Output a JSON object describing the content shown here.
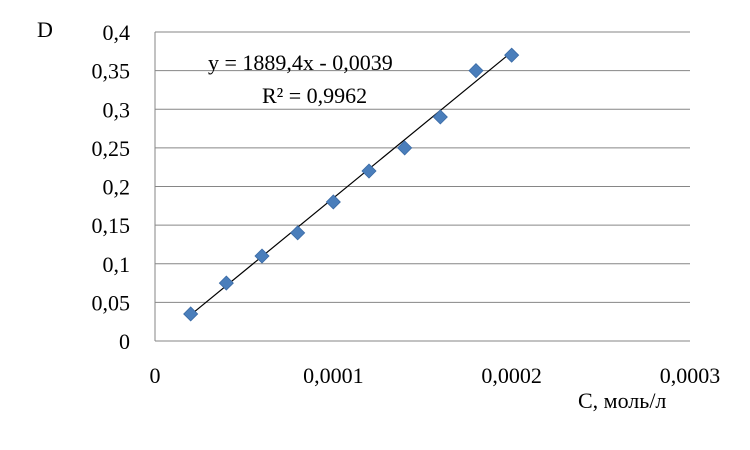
{
  "chart_data": {
    "type": "scatter",
    "xlabel": "C,  моль/л",
    "ylabel": "D",
    "xlim": [
      0,
      0.0003
    ],
    "ylim": [
      0,
      0.4
    ],
    "x_ticks": [
      {
        "value": 0,
        "label": "0"
      },
      {
        "value": 0.0001,
        "label": "0,0001"
      },
      {
        "value": 0.0002,
        "label": "0,0002"
      },
      {
        "value": 0.0003,
        "label": "0,0003"
      }
    ],
    "y_ticks": [
      {
        "value": 0,
        "label": "0"
      },
      {
        "value": 0.05,
        "label": "0,05"
      },
      {
        "value": 0.1,
        "label": "0,1"
      },
      {
        "value": 0.15,
        "label": "0,15"
      },
      {
        "value": 0.2,
        "label": "0,2"
      },
      {
        "value": 0.25,
        "label": "0,25"
      },
      {
        "value": 0.3,
        "label": "0,3"
      },
      {
        "value": 0.35,
        "label": "0,35"
      },
      {
        "value": 0.4,
        "label": "0,4"
      }
    ],
    "grid": "horizontal",
    "series": [
      {
        "marker": "diamond",
        "color": "#4a7ebb",
        "points": [
          {
            "x": 2e-05,
            "y": 0.035
          },
          {
            "x": 4e-05,
            "y": 0.075
          },
          {
            "x": 6e-05,
            "y": 0.11
          },
          {
            "x": 8e-05,
            "y": 0.14
          },
          {
            "x": 0.0001,
            "y": 0.18
          },
          {
            "x": 0.00012,
            "y": 0.22
          },
          {
            "x": 0.00014,
            "y": 0.25
          },
          {
            "x": 0.00016,
            "y": 0.29
          },
          {
            "x": 0.00018,
            "y": 0.35
          },
          {
            "x": 0.0002,
            "y": 0.37
          }
        ]
      }
    ],
    "trendline": {
      "slope": 1889.4,
      "intercept": -0.0039,
      "x_range": [
        2e-05,
        0.0002
      ],
      "equation": "y = 1889,4x  - 0,0039",
      "r_squared": "R² = 0,9962"
    }
  }
}
